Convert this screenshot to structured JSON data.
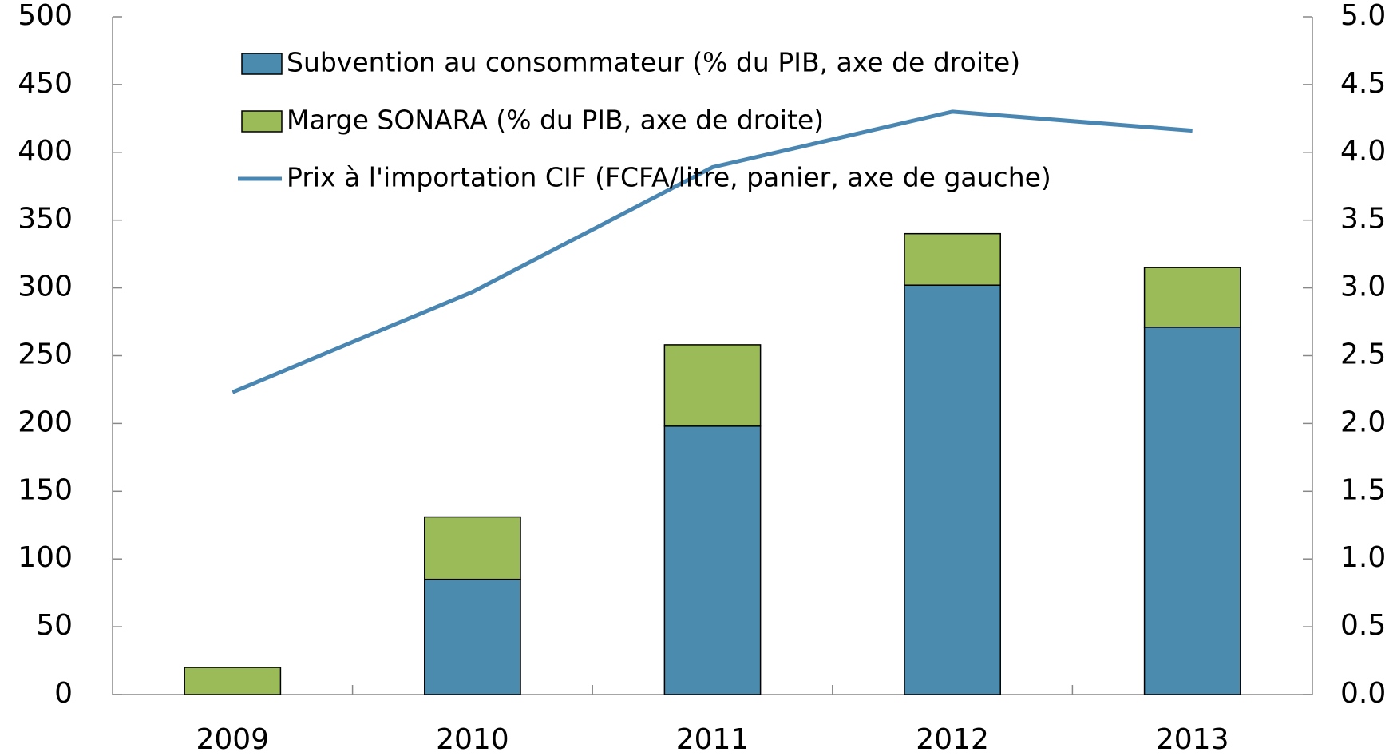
{
  "chart_data": {
    "type": "bar_line",
    "categories": [
      "2009",
      "2010",
      "2011",
      "2012",
      "2013"
    ],
    "series": [
      {
        "name": "Subvention au consommateur (% du PIB, axe de droite)",
        "color": "#4a8bae",
        "axis": "y2",
        "kind": "bar",
        "values": [
          0,
          0.85,
          1.98,
          3.02,
          2.71
        ]
      },
      {
        "name": "Marge SONARA (% du PIB, axe de droite)",
        "color": "#9bbb59",
        "axis": "y2",
        "kind": "bar",
        "values": [
          0.2,
          0.46,
          0.6,
          0.38,
          0.44
        ]
      },
      {
        "name": "Prix à l'importation CIF (FCFA/litre, panier, axe de gauche)",
        "color": "#4a86b2",
        "axis": "y",
        "kind": "line",
        "values": [
          223,
          297,
          389,
          430,
          416
        ]
      }
    ],
    "ylim": [
      0,
      500
    ],
    "yticks": [
      0,
      50,
      100,
      150,
      200,
      250,
      300,
      350,
      400,
      450,
      500
    ],
    "y2lim": [
      0,
      5
    ],
    "y2ticks": [
      {
        "value": 0,
        "label": "0.0"
      },
      0.5,
      {
        "value": 1,
        "label": "1.0"
      },
      1.5,
      {
        "value": 2,
        "label": "2.0"
      },
      2.5,
      {
        "value": 3,
        "label": "3.0"
      },
      3.5,
      {
        "value": 4,
        "label": "4.0"
      },
      4.5,
      {
        "value": 5,
        "label": "5.0"
      }
    ],
    "stacked": true,
    "grid": false
  }
}
